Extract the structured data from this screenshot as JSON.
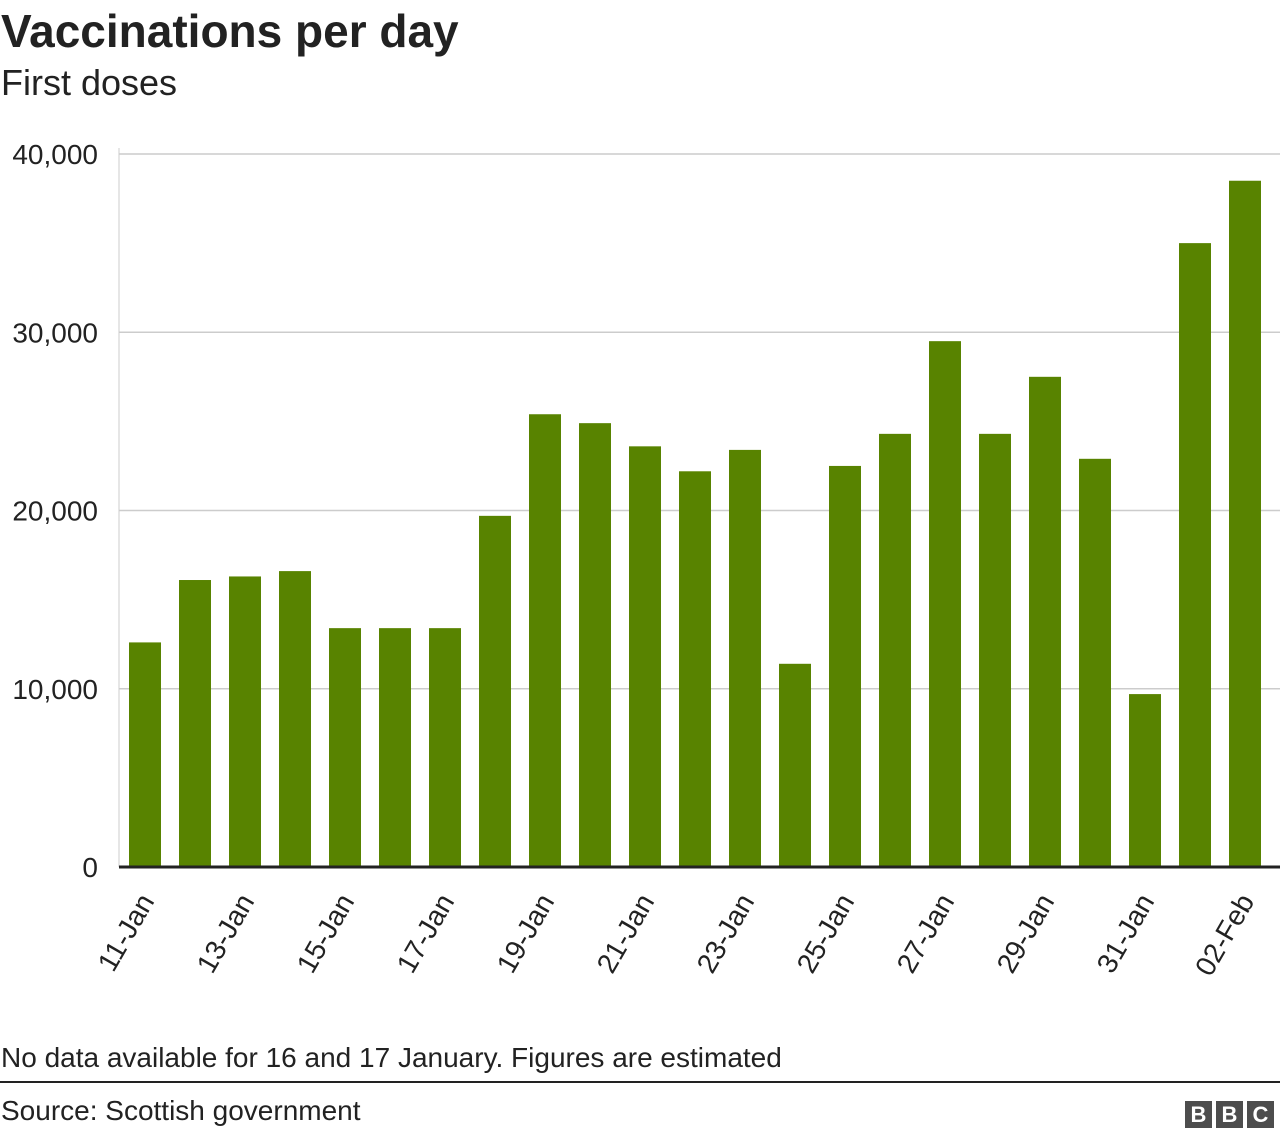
{
  "header": {
    "title": "Vaccinations per day",
    "subtitle": "First doses"
  },
  "chart_data": {
    "type": "bar",
    "title": "Vaccinations per day",
    "subtitle": "First doses",
    "xlabel": "",
    "ylabel": "",
    "ylim": [
      0,
      40000
    ],
    "yticks": [
      0,
      10000,
      20000,
      30000,
      40000
    ],
    "ytick_labels": [
      "0",
      "10,000",
      "20,000",
      "30,000",
      "40,000"
    ],
    "grid": true,
    "legend": "none",
    "bar_color": "#588300",
    "categories": [
      "11-Jan",
      "12-Jan",
      "13-Jan",
      "14-Jan",
      "15-Jan",
      "16-Jan",
      "17-Jan",
      "18-Jan",
      "19-Jan",
      "20-Jan",
      "21-Jan",
      "22-Jan",
      "23-Jan",
      "24-Jan",
      "25-Jan",
      "26-Jan",
      "27-Jan",
      "28-Jan",
      "29-Jan",
      "30-Jan",
      "31-Jan",
      "01-Feb",
      "02-Feb"
    ],
    "xtick_labels": [
      "11-Jan",
      "13-Jan",
      "15-Jan",
      "17-Jan",
      "19-Jan",
      "21-Jan",
      "23-Jan",
      "25-Jan",
      "27-Jan",
      "29-Jan",
      "31-Jan",
      "02-Feb"
    ],
    "values": [
      12600,
      16100,
      16300,
      16600,
      13400,
      13400,
      13400,
      19700,
      25400,
      24900,
      23600,
      22200,
      23400,
      11400,
      22500,
      24300,
      29500,
      24300,
      27500,
      22900,
      9700,
      35000,
      38500
    ]
  },
  "footer": {
    "note": "No data available for 16 and 17 January. Figures are estimated",
    "source": "Source: Scottish government",
    "logo_letters": [
      "B",
      "B",
      "C"
    ]
  }
}
